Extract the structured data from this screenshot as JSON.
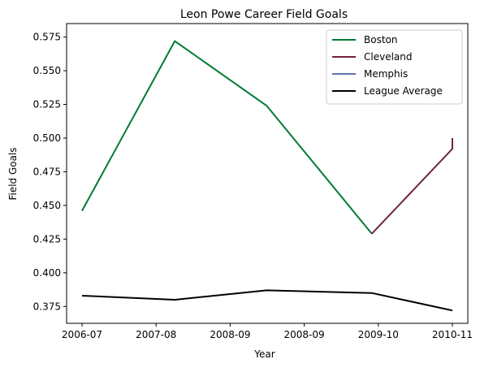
{
  "chart_data": {
    "type": "line",
    "title": "Leon Powe Career Field Goals",
    "xlabel": "Year",
    "ylabel": "Field Goals",
    "x_ticks": [
      "2006-07",
      "2007-08",
      "2008-09",
      "2008-09",
      "2009-10",
      "2010-11"
    ],
    "ylim": [
      0.3625,
      0.585
    ],
    "y_ticks": [
      "0.375",
      "0.400",
      "0.425",
      "0.450",
      "0.475",
      "0.500",
      "0.525",
      "0.550",
      "0.575"
    ],
    "grid": false,
    "legend_position": "top-right",
    "series": [
      {
        "name": "Boston",
        "color": "#007a33",
        "points": [
          {
            "x": "2006-07",
            "y": 0.446
          },
          {
            "x": "2007-08",
            "y": 0.572
          },
          {
            "x": "2008-09",
            "y": 0.524
          },
          {
            "x": "2009-10",
            "y": 0.429
          }
        ]
      },
      {
        "name": "Cleveland",
        "color": "#6f263d",
        "points": [
          {
            "x": "2009-10",
            "y": 0.429
          },
          {
            "x": "2010-11",
            "y": 0.492
          },
          {
            "x": "2010-11",
            "y": 0.5
          }
        ]
      },
      {
        "name": "Memphis",
        "color": "#5d76a9",
        "points": [
          {
            "x": "2010-11",
            "y": 0.492
          },
          {
            "x": "2010-11",
            "y": 0.5
          }
        ]
      },
      {
        "name": "League Average",
        "color": "#000000",
        "points": [
          {
            "x": "2006-07",
            "y": 0.383
          },
          {
            "x": "2007-08",
            "y": 0.38
          },
          {
            "x": "2008-09",
            "y": 0.387
          },
          {
            "x": "2009-10",
            "y": 0.385
          },
          {
            "x": "2010-11",
            "y": 0.372
          }
        ]
      }
    ]
  }
}
